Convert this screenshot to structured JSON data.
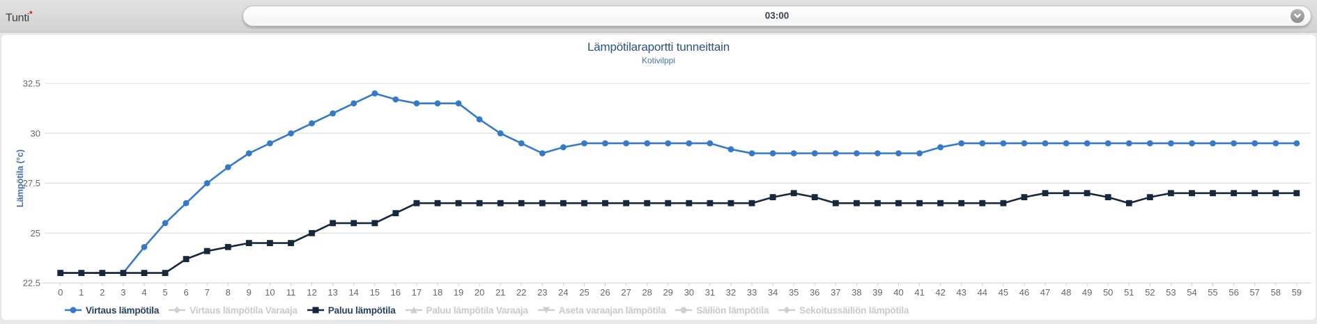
{
  "form": {
    "field_label": "Tunti",
    "required_mark": "*",
    "dropdown_value": "03:00"
  },
  "chart_data": {
    "type": "line",
    "title": "Lämpötilaraportti tunneittain",
    "subtitle": "Kotivilppi",
    "xlabel": "",
    "ylabel": "Lämpötila (°c)",
    "ylim": [
      22.5,
      32.5
    ],
    "yticks": [
      22.5,
      25,
      27.5,
      30,
      32.5
    ],
    "grid": "horizontal-only",
    "legend_position": "bottom-left",
    "x": [
      0,
      1,
      2,
      3,
      4,
      5,
      6,
      7,
      8,
      9,
      10,
      11,
      12,
      13,
      14,
      15,
      16,
      17,
      18,
      19,
      20,
      21,
      22,
      23,
      24,
      25,
      26,
      27,
      28,
      29,
      30,
      31,
      32,
      33,
      34,
      35,
      36,
      37,
      38,
      39,
      40,
      41,
      42,
      43,
      44,
      45,
      46,
      47,
      48,
      49,
      50,
      51,
      52,
      53,
      54,
      55,
      56,
      57,
      58,
      59
    ],
    "series": [
      {
        "name": "Virtaus lämpötila",
        "color": "#3579c8",
        "marker": "circle",
        "values": [
          23,
          23,
          23,
          23,
          24.3,
          25.5,
          26.5,
          27.5,
          28.3,
          29,
          29.5,
          30,
          30.5,
          31,
          31.5,
          32,
          31.7,
          31.5,
          31.5,
          31.5,
          30.7,
          30,
          29.5,
          29,
          29.3,
          29.5,
          29.5,
          29.5,
          29.5,
          29.5,
          29.5,
          29.5,
          29.2,
          29,
          29,
          29,
          29,
          29,
          29,
          29,
          29,
          29,
          29.3,
          29.5,
          29.5,
          29.5,
          29.5,
          29.5,
          29.5,
          29.5,
          29.5,
          29.5,
          29.5,
          29.5,
          29.5,
          29.5,
          29.5,
          29.5,
          29.5,
          29.5
        ]
      },
      {
        "name": "Paluu lämpötila",
        "color": "#16283c",
        "marker": "square",
        "values": [
          23,
          23,
          23,
          23,
          23,
          23,
          23.7,
          24.1,
          24.3,
          24.5,
          24.5,
          24.5,
          25,
          25.5,
          25.5,
          25.5,
          26,
          26.5,
          26.5,
          26.5,
          26.5,
          26.5,
          26.5,
          26.5,
          26.5,
          26.5,
          26.5,
          26.5,
          26.5,
          26.5,
          26.5,
          26.5,
          26.5,
          26.5,
          26.8,
          27,
          26.8,
          26.5,
          26.5,
          26.5,
          26.5,
          26.5,
          26.5,
          26.5,
          26.5,
          26.5,
          26.8,
          27,
          27,
          27,
          26.8,
          26.5,
          26.8,
          27,
          27,
          27,
          27,
          27,
          27,
          27
        ]
      }
    ],
    "legend": [
      {
        "id": "virtaus-lampotila",
        "label": "Virtaus lämpötila",
        "marker": "circle",
        "color": "#3579c8",
        "active": true
      },
      {
        "id": "virtaus-lampotila-varaaja",
        "label": "Virtaus lämpötila Varaaja",
        "marker": "diamond",
        "color": "#cfcfcf",
        "active": false
      },
      {
        "id": "paluu-lampotila",
        "label": "Paluu lämpötila",
        "marker": "square",
        "color": "#16283c",
        "active": true
      },
      {
        "id": "paluu-lampotila-varaaja",
        "label": "Paluu lämpötila Varaaja",
        "marker": "triangle",
        "color": "#cfcfcf",
        "active": false
      },
      {
        "id": "aseta-varaajan-lampotila",
        "label": "Aseta varaajan lämpötila",
        "marker": "triangle-down",
        "color": "#cfcfcf",
        "active": false
      },
      {
        "id": "sailion-lampotila",
        "label": "Säiliön lämpötila",
        "marker": "circle",
        "color": "#cfcfcf",
        "active": false
      },
      {
        "id": "sekoitussailion-lampotila",
        "label": "Sekoitussäiliön lämpötila",
        "marker": "diamond",
        "color": "#cfcfcf",
        "active": false
      }
    ]
  },
  "colors": {
    "accent_blue": "#3579c8",
    "accent_navy": "#16283c",
    "title_blue": "#2a527f",
    "axis_title_blue": "#4572a7",
    "tick_gray": "#666666",
    "gridline": "#d8d8d8",
    "axis_line": "#c5d2dc",
    "inactive_gray": "#cfcfcf"
  }
}
